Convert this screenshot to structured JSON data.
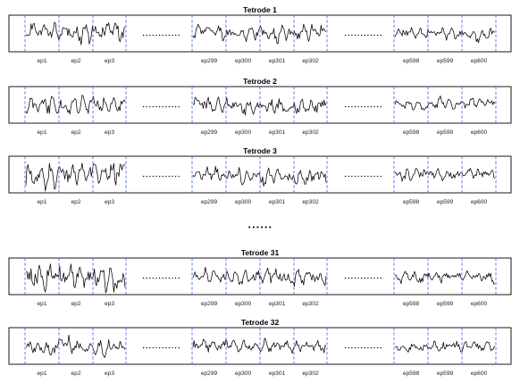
{
  "chart_data": [
    {
      "type": "line",
      "title": "Tetrode 1",
      "xlabel": "",
      "ylabel": "",
      "grid": false,
      "groups": [
        {
          "episodes": [
            "ep1",
            "ep2",
            "ep3"
          ]
        },
        {
          "episodes": [
            "ep299",
            "ep300",
            "ep301",
            "ep302"
          ]
        },
        {
          "episodes": [
            "ep598",
            "ep599",
            "ep600"
          ]
        }
      ],
      "separator_between_groups": "........",
      "series": [
        {
          "values_seed": 1
        }
      ]
    },
    {
      "type": "line",
      "title": "Tetrode 2",
      "xlabel": "",
      "ylabel": "",
      "grid": false,
      "groups": [
        {
          "episodes": [
            "ep1",
            "ep2",
            "ep3"
          ]
        },
        {
          "episodes": [
            "ep299",
            "ep300",
            "ep301",
            "ep302"
          ]
        },
        {
          "episodes": [
            "ep598",
            "ep599",
            "ep600"
          ]
        }
      ],
      "separator_between_groups": "........",
      "series": [
        {
          "values_seed": 2
        }
      ]
    },
    {
      "type": "line",
      "title": "Tetrode 3",
      "xlabel": "",
      "ylabel": "",
      "grid": false,
      "groups": [
        {
          "episodes": [
            "ep1",
            "ep2",
            "ep3"
          ]
        },
        {
          "episodes": [
            "ep299",
            "ep300",
            "ep301",
            "ep302"
          ]
        },
        {
          "episodes": [
            "ep598",
            "ep599",
            "ep600"
          ]
        }
      ],
      "separator_between_groups": "........",
      "series": [
        {
          "values_seed": 3
        }
      ]
    },
    {
      "type": "line",
      "title": "Tetrode 31",
      "xlabel": "",
      "ylabel": "",
      "grid": false,
      "groups": [
        {
          "episodes": [
            "ep1",
            "ep2",
            "ep3"
          ]
        },
        {
          "episodes": [
            "ep299",
            "ep300",
            "ep301",
            "ep302"
          ]
        },
        {
          "episodes": [
            "ep598",
            "ep599",
            "ep600"
          ]
        }
      ],
      "separator_between_groups": "........",
      "series": [
        {
          "values_seed": 31
        }
      ]
    },
    {
      "type": "line",
      "title": "Tetrode 32",
      "xlabel": "",
      "ylabel": "",
      "grid": false,
      "groups": [
        {
          "episodes": [
            "ep1",
            "ep2",
            "ep3"
          ]
        },
        {
          "episodes": [
            "ep299",
            "ep300",
            "ep301",
            "ep302"
          ]
        },
        {
          "episodes": [
            "ep598",
            "ep599",
            "ep600"
          ]
        }
      ],
      "separator_between_groups": "........",
      "series": [
        {
          "values_seed": 32
        }
      ]
    }
  ],
  "vertical_ellipsis": "••••••",
  "colors": {
    "separator": "#4a6ff0",
    "trace": "#000000",
    "frame": "#000000"
  }
}
